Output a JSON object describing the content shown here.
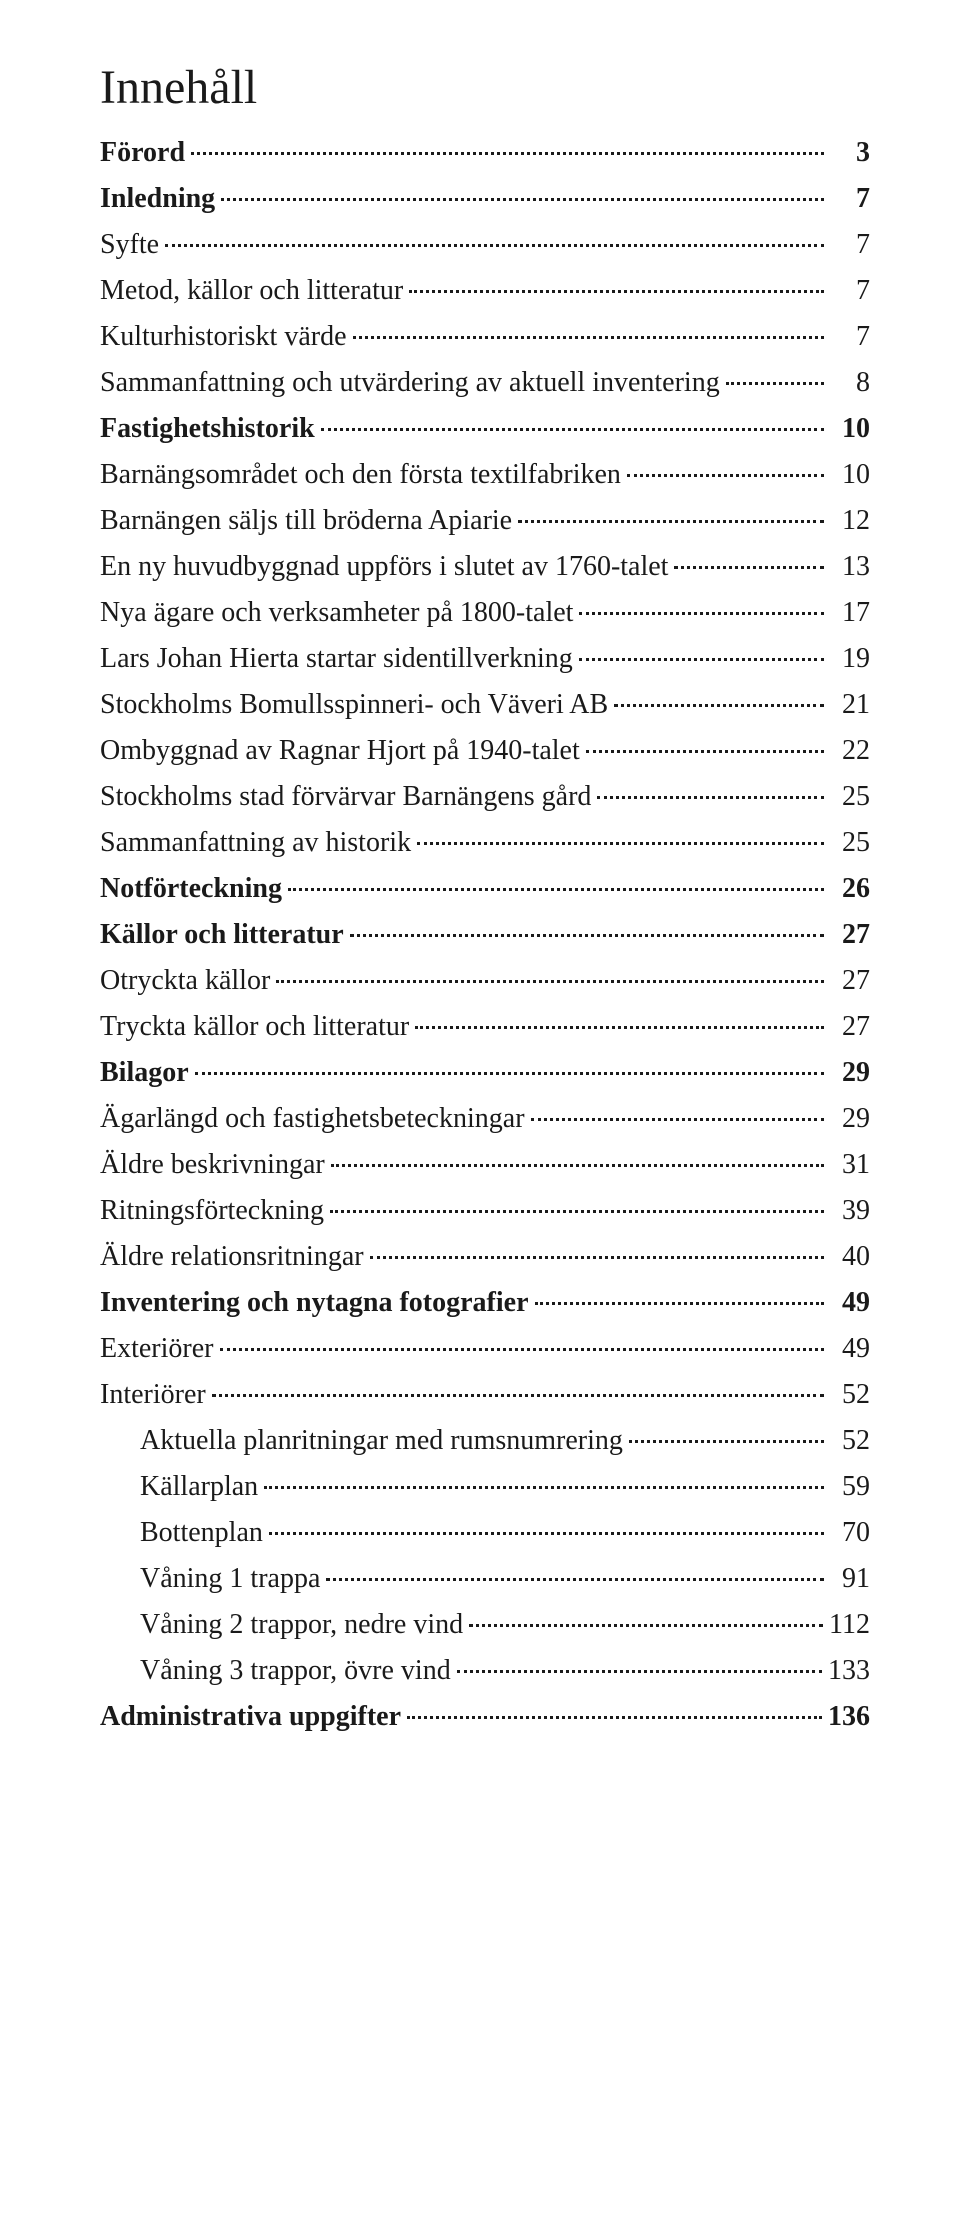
{
  "title": "Innehåll",
  "entries": [
    {
      "label": "Förord",
      "page": "3",
      "bold": true,
      "nested": false
    },
    {
      "label": "Inledning",
      "page": "7",
      "bold": true,
      "nested": false
    },
    {
      "label": "Syfte",
      "page": "7",
      "bold": false,
      "nested": false
    },
    {
      "label": "Metod, källor och litteratur",
      "page": "7",
      "bold": false,
      "nested": false
    },
    {
      "label": "Kulturhistoriskt värde",
      "page": "7",
      "bold": false,
      "nested": false
    },
    {
      "label": "Sammanfattning och utvärdering av aktuell inventering",
      "page": "8",
      "bold": false,
      "nested": false
    },
    {
      "label": "Fastighetshistorik",
      "page": "10",
      "bold": true,
      "nested": false
    },
    {
      "label": "Barnängsområdet och den första textilfabriken",
      "page": "10",
      "bold": false,
      "nested": false
    },
    {
      "label": "Barnängen säljs till bröderna Apiarie",
      "page": "12",
      "bold": false,
      "nested": false
    },
    {
      "label": "En ny huvudbyggnad uppförs i slutet av 1760-talet",
      "page": "13",
      "bold": false,
      "nested": false
    },
    {
      "label": "Nya ägare och verksamheter på 1800-talet",
      "page": "17",
      "bold": false,
      "nested": false
    },
    {
      "label": "Lars Johan Hierta startar sidentillverkning",
      "page": "19",
      "bold": false,
      "nested": false
    },
    {
      "label": "Stockholms Bomullsspinneri- och Väveri AB",
      "page": "21",
      "bold": false,
      "nested": false
    },
    {
      "label": "Ombyggnad av Ragnar Hjort på 1940-talet",
      "page": "22",
      "bold": false,
      "nested": false
    },
    {
      "label": "Stockholms stad förvärvar Barnängens gård",
      "page": "25",
      "bold": false,
      "nested": false
    },
    {
      "label": "Sammanfattning av historik",
      "page": "25",
      "bold": false,
      "nested": false
    },
    {
      "label": "Notförteckning",
      "page": "26",
      "bold": true,
      "nested": false
    },
    {
      "label": "Källor och litteratur",
      "page": "27",
      "bold": true,
      "nested": false
    },
    {
      "label": "Otryckta källor",
      "page": "27",
      "bold": false,
      "nested": false
    },
    {
      "label": "Tryckta källor och litteratur",
      "page": "27",
      "bold": false,
      "nested": false
    },
    {
      "label": "Bilagor",
      "page": "29",
      "bold": true,
      "nested": false
    },
    {
      "label": "Ägarlängd och fastighetsbeteckningar",
      "page": "29",
      "bold": false,
      "nested": false
    },
    {
      "label": "Äldre beskrivningar",
      "page": "31",
      "bold": false,
      "nested": false
    },
    {
      "label": "Ritningsförteckning",
      "page": "39",
      "bold": false,
      "nested": false
    },
    {
      "label": "Äldre relationsritningar",
      "page": "40",
      "bold": false,
      "nested": false
    },
    {
      "label": "Inventering och nytagna fotografier",
      "page": "49",
      "bold": true,
      "nested": false
    },
    {
      "label": "Exteriörer",
      "page": "49",
      "bold": false,
      "nested": false
    },
    {
      "label": "Interiörer",
      "page": "52",
      "bold": false,
      "nested": false
    },
    {
      "label": "Aktuella planritningar med rumsnumrering",
      "page": "52",
      "bold": false,
      "nested": true
    },
    {
      "label": "Källarplan",
      "page": "59",
      "bold": false,
      "nested": true
    },
    {
      "label": "Bottenplan",
      "page": "70",
      "bold": false,
      "nested": true
    },
    {
      "label": "Våning 1 trappa",
      "page": "91",
      "bold": false,
      "nested": true
    },
    {
      "label": "Våning 2 trappor, nedre vind",
      "page": "112",
      "bold": false,
      "nested": true
    },
    {
      "label": "Våning 3 trappor, övre vind",
      "page": "133",
      "bold": false,
      "nested": true
    },
    {
      "label": "Administrativa uppgifter",
      "page": "136",
      "bold": true,
      "nested": false
    }
  ]
}
